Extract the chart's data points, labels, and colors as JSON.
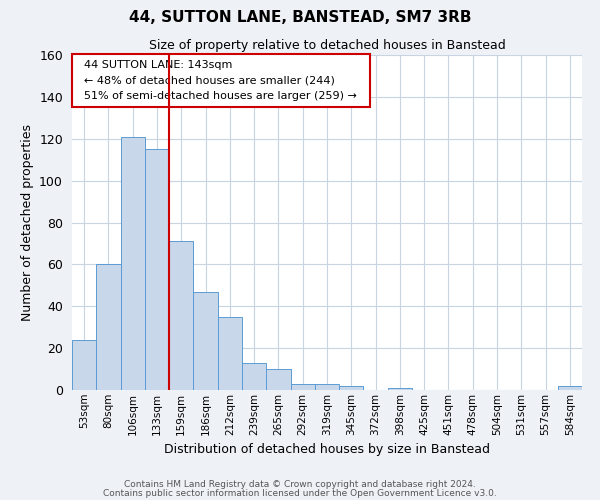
{
  "title": "44, SUTTON LANE, BANSTEAD, SM7 3RB",
  "subtitle": "Size of property relative to detached houses in Banstead",
  "xlabel": "Distribution of detached houses by size in Banstead",
  "ylabel": "Number of detached properties",
  "bin_labels": [
    "53sqm",
    "80sqm",
    "106sqm",
    "133sqm",
    "159sqm",
    "186sqm",
    "212sqm",
    "239sqm",
    "265sqm",
    "292sqm",
    "319sqm",
    "345sqm",
    "372sqm",
    "398sqm",
    "425sqm",
    "451sqm",
    "478sqm",
    "504sqm",
    "531sqm",
    "557sqm",
    "584sqm"
  ],
  "bar_heights": [
    24,
    60,
    121,
    115,
    71,
    47,
    35,
    13,
    10,
    3,
    3,
    2,
    0,
    1,
    0,
    0,
    0,
    0,
    0,
    0,
    2
  ],
  "bar_color": "#c8d8ea",
  "bar_edge_color": "#5b9bd5",
  "ylim": [
    0,
    160
  ],
  "yticks": [
    0,
    20,
    40,
    60,
    80,
    100,
    120,
    140,
    160
  ],
  "vline_color": "#cc0000",
  "annotation_title": "44 SUTTON LANE: 143sqm",
  "annotation_line1": "← 48% of detached houses are smaller (244)",
  "annotation_line2": "51% of semi-detached houses are larger (259) →",
  "annotation_box_color": "white",
  "annotation_box_edge": "#cc0000",
  "footer1": "Contains HM Land Registry data © Crown copyright and database right 2024.",
  "footer2": "Contains public sector information licensed under the Open Government Licence v3.0.",
  "background_color": "#eef2f7",
  "plot_bg_color": "white",
  "grid_color": "#c8d4e0"
}
